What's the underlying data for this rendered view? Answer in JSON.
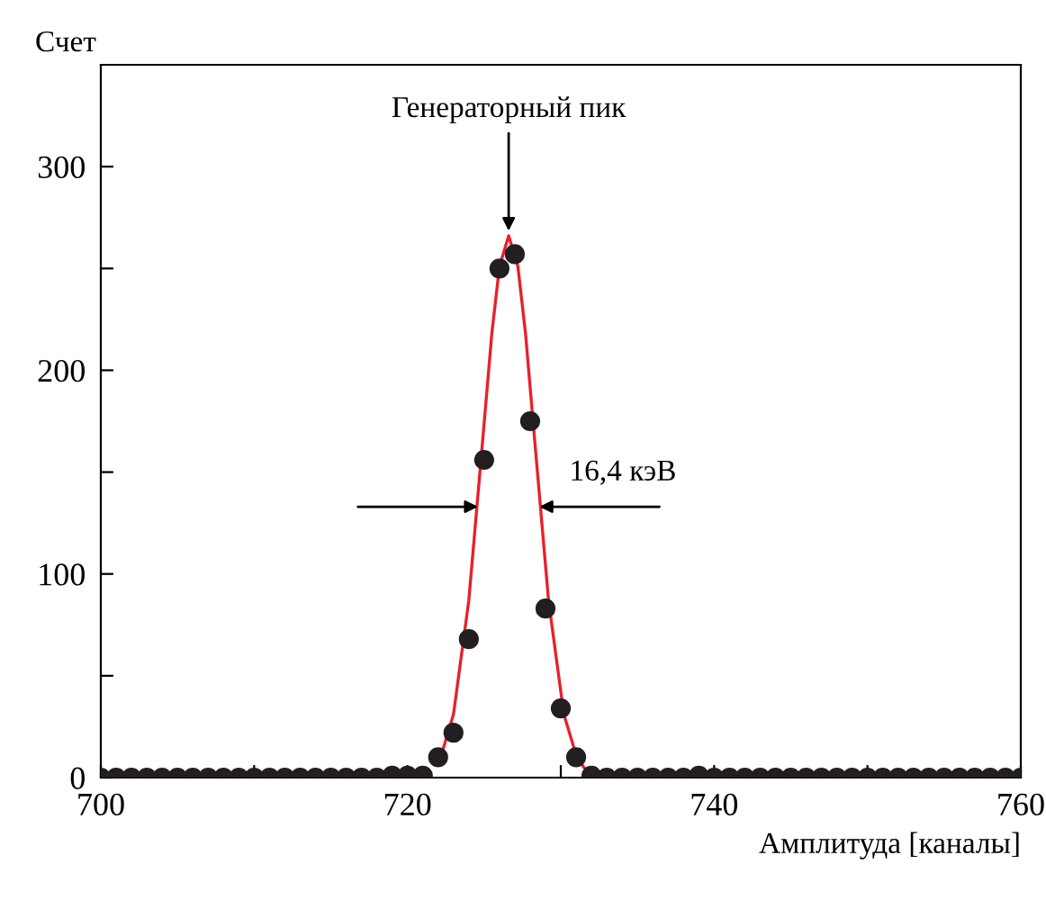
{
  "chart_data": {
    "type": "scatter",
    "xlabel": "Амплитуда [каналы]",
    "ylabel": "Счет",
    "xlim": [
      700,
      760
    ],
    "ylim": [
      0,
      350
    ],
    "xticks": [
      700,
      {
        "value": 710,
        "label": null
      },
      720,
      {
        "value": 730,
        "label": null
      },
      740,
      {
        "value": 750,
        "label": null
      },
      760
    ],
    "yticks": [
      0,
      {
        "value": 50,
        "label": null
      },
      100,
      {
        "value": 150,
        "label": null
      },
      200,
      {
        "value": 250,
        "label": null
      },
      300
    ],
    "grid": false,
    "series": [
      {
        "marker": "circle",
        "color": "#231f20",
        "x": [
          700,
          701,
          702,
          703,
          704,
          705,
          706,
          707,
          708,
          709,
          710,
          711,
          712,
          713,
          714,
          715,
          716,
          717,
          718,
          719,
          720,
          721,
          722,
          723,
          724,
          725,
          726,
          727,
          728,
          729,
          730,
          731,
          732,
          733,
          734,
          735,
          736,
          737,
          738,
          739,
          740,
          741,
          742,
          743,
          744,
          745,
          746,
          747,
          748,
          749,
          750,
          751,
          752,
          753,
          754,
          755,
          756,
          757,
          758,
          759,
          760
        ],
        "values": [
          0,
          0,
          0,
          0,
          0,
          0,
          0,
          0,
          0,
          0,
          0,
          0,
          0,
          0,
          0,
          0,
          0,
          0,
          0,
          1,
          1,
          1,
          10,
          22,
          68,
          156,
          250,
          257,
          175,
          83,
          34,
          10,
          1,
          0,
          0,
          0,
          0,
          0,
          0,
          1,
          0,
          0,
          0,
          0,
          0,
          0,
          0,
          0,
          0,
          0,
          0,
          0,
          0,
          0,
          0,
          0,
          0,
          0,
          0,
          0,
          0
        ]
      },
      {
        "type": "line",
        "color": "#e8202a",
        "x": [
          722.2,
          723,
          724,
          725,
          725.5,
          726,
          726.6,
          727.2,
          727.7,
          728.2,
          729.2,
          730.2,
          731,
          731.5,
          732
        ],
        "values": [
          11,
          31,
          87,
          174,
          218,
          251,
          266,
          251,
          218,
          174,
          87,
          31,
          11,
          5,
          2
        ]
      }
    ],
    "annotations": [
      {
        "text": "Генераторный пик",
        "x": 726.6,
        "y": 266
      },
      {
        "text": "16,4 кэВ",
        "x": 728.6,
        "y": 133
      }
    ]
  }
}
